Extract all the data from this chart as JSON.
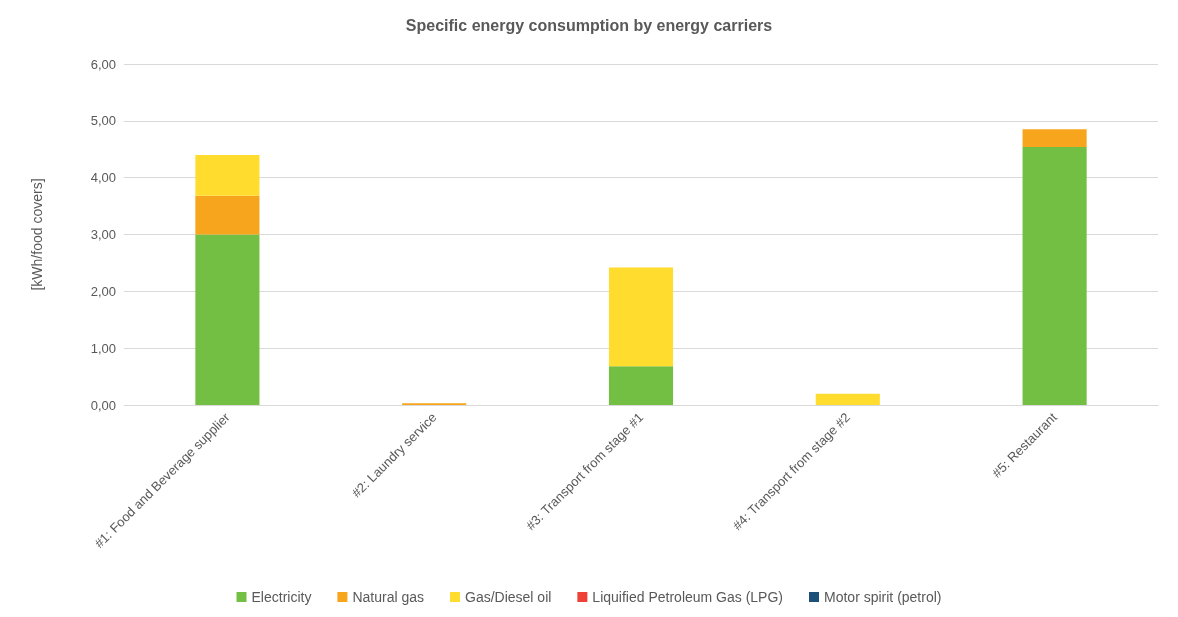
{
  "chart_data": {
    "type": "bar",
    "title": "Specific energy consumption by energy carriers",
    "ylabel": "[kWh/food covers]",
    "categories": [
      "#1: Food and Beverage supplier",
      "#2: Laundry service",
      "#3: Transport from stage #1",
      "#4: Transport from stage #2",
      "#5: Restaurant"
    ],
    "series": [
      {
        "name": "Electricity",
        "color": "#72bf44",
        "values": [
          3.0,
          0,
          0.68,
          0,
          4.54
        ]
      },
      {
        "name": "Natural gas",
        "color": "#f7a51c",
        "values": [
          0.68,
          0.03,
          0,
          0,
          0.31
        ]
      },
      {
        "name": "Gas/Diesel oil",
        "color": "#ffdc2e",
        "values": [
          0.72,
          0,
          1.74,
          0.2,
          0
        ]
      },
      {
        "name": "Liquified Petroleum Gas (LPG)",
        "color": "#ee4036",
        "values": [
          0,
          0,
          0,
          0,
          0
        ]
      },
      {
        "name": "Motor spirit (petrol)",
        "color": "#1c5079",
        "values": [
          0,
          0,
          0,
          0,
          0
        ]
      }
    ],
    "stacked": true,
    "ylim": [
      0,
      6
    ],
    "yticks": [
      {
        "value": 0,
        "label": "0,00"
      },
      {
        "value": 1,
        "label": "1,00"
      },
      {
        "value": 2,
        "label": "2,00"
      },
      {
        "value": 3,
        "label": "3,00"
      },
      {
        "value": 4,
        "label": "4,00"
      },
      {
        "value": 5,
        "label": "5,00"
      },
      {
        "value": 6,
        "label": "6,00"
      }
    ],
    "grid": "y",
    "legend": "bottom"
  }
}
